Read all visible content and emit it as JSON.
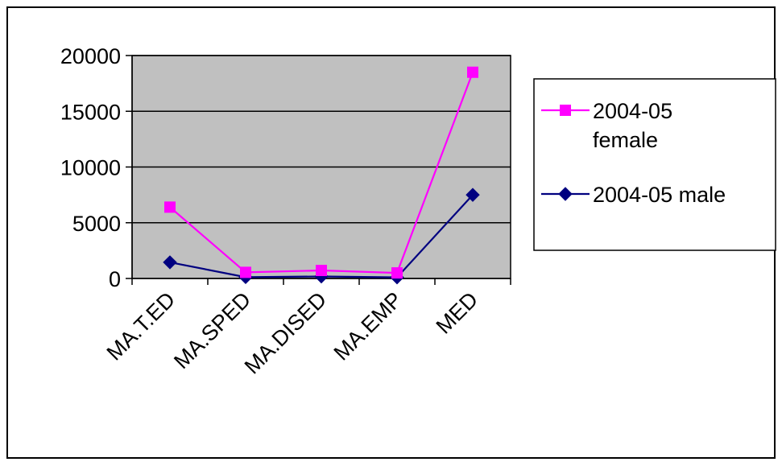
{
  "chart_data": {
    "type": "line",
    "categories": [
      "MA.T.ED",
      "MA.SPED",
      "MA.DISED",
      "MA.EMP",
      "MED"
    ],
    "series": [
      {
        "name": "2004-05 female",
        "values": [
          6400,
          550,
          720,
          500,
          18500
        ],
        "color": "#ff00ff",
        "marker": "square"
      },
      {
        "name": "2004-05 male",
        "values": [
          1450,
          120,
          180,
          100,
          7500
        ],
        "color": "#000080",
        "marker": "diamond"
      }
    ],
    "ylim": [
      0,
      20000
    ],
    "yticks": [
      0,
      5000,
      10000,
      15000,
      20000
    ],
    "ytick_labels": [
      "0",
      "5000",
      "10000",
      "15000",
      "20000"
    ],
    "grid": true,
    "plot_background": "#c0c0c0",
    "legend": {
      "position": "right",
      "entries": [
        {
          "lines": [
            "2004-05",
            "female"
          ]
        },
        {
          "lines": [
            "2004-05 male"
          ]
        }
      ]
    }
  }
}
